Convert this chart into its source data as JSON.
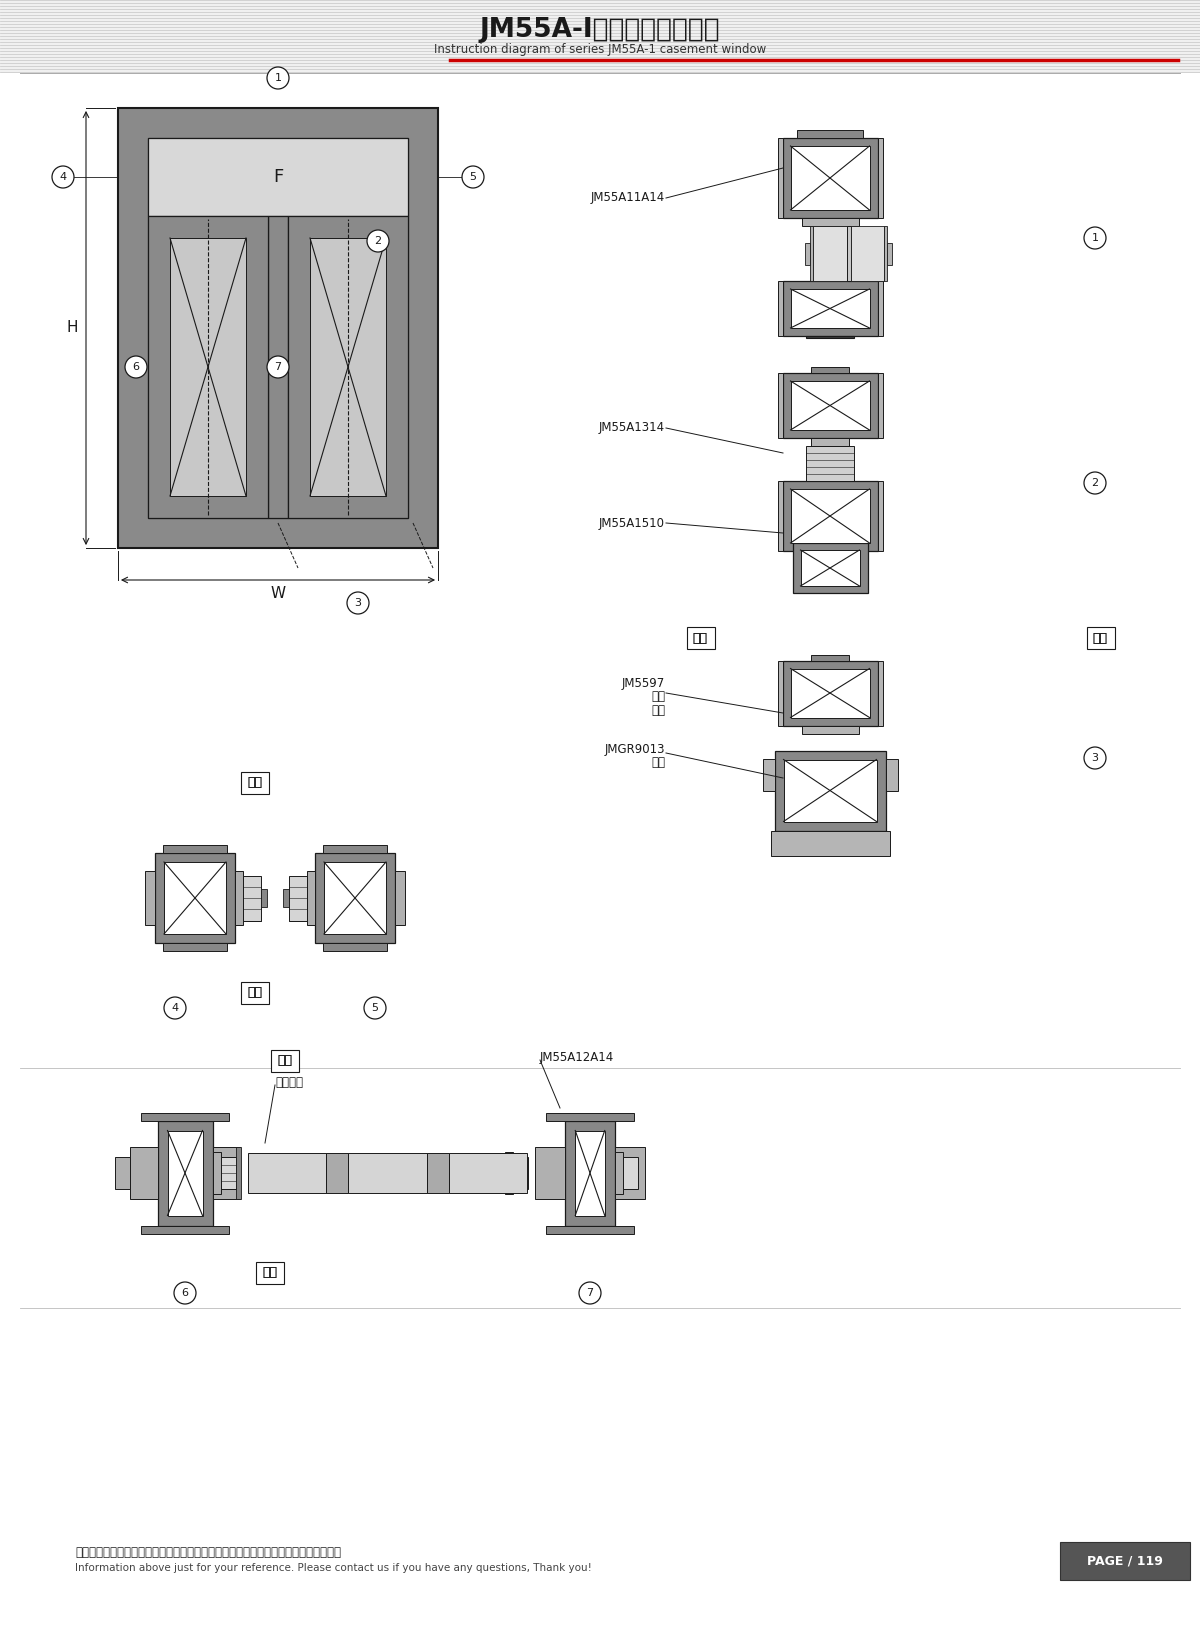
{
  "title_cn": "JM55A-I系列平开窗结构图",
  "title_en": "Instruction diagram of series JM55A-1 casement window",
  "footer_cn": "图中所示型材截面、装配、编号、尺寸及重量仅供参考。如有病问，请向本公司查询。",
  "footer_en": "Information above just for your reference. Please contact us if you have any questions, Thank you!",
  "page": "PAGE / 119",
  "bg_color": "#ffffff",
  "red_color": "#cc0000",
  "dark": "#1a1a1a",
  "gray": "#888888",
  "lgray": "#b0b0b0",
  "white": "#ffffff"
}
